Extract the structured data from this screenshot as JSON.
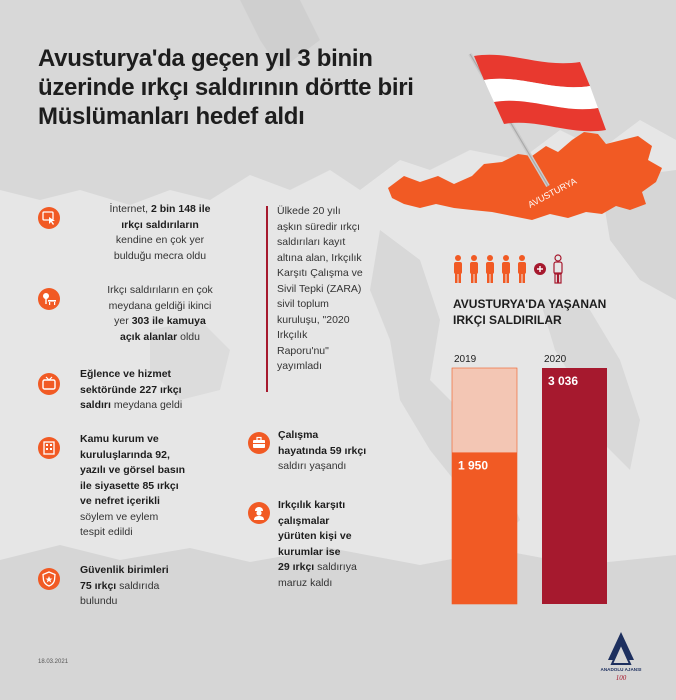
{
  "title": "Avusturya'da geçen yıl 3 binin üzerinde ırkçı saldırının dörtte biri Müslümanları hedef aldı",
  "map_label": "AVUSTURYA",
  "colors": {
    "orange": "#f15a24",
    "dark_red": "#a6192e",
    "light_pink": "#f3c6b4",
    "flag_red": "#e8392f"
  },
  "left_items": [
    {
      "icon": "cursor-click-icon",
      "lines": [
        [
          {
            "t": "İnternet, "
          },
          {
            "t": "2 bin 148 ile",
            "b": true
          }
        ],
        [
          {
            "t": "ırkçı saldırıların",
            "b": true
          }
        ],
        [
          {
            "t": "kendine en çok yer"
          }
        ],
        [
          {
            "t": "bulduğu mecra oldu"
          }
        ]
      ]
    },
    {
      "icon": "park-bench-icon",
      "lines": [
        [
          {
            "t": "Irkçı saldırıların en çok"
          }
        ],
        [
          {
            "t": "meydana geldiği ikinci"
          }
        ],
        [
          {
            "t": "yer "
          },
          {
            "t": "303 ile kamuya",
            "b": true
          }
        ],
        [
          {
            "t": "açık alanlar",
            "b": true
          },
          {
            "t": " oldu"
          }
        ]
      ]
    },
    {
      "icon": "television-icon",
      "lines": [
        [
          {
            "t": "Eğlence ve hizmet",
            "b": true
          }
        ],
        [
          {
            "t": "sektöründe 227 ırkçı",
            "b": true
          }
        ],
        [
          {
            "t": "saldırı",
            "b": true
          },
          {
            "t": " meydana geldi"
          }
        ]
      ]
    },
    {
      "icon": "building-icon",
      "lines": [
        [
          {
            "t": "Kamu kurum ve",
            "b": true
          }
        ],
        [
          {
            "t": "kuruluşlarında 92,",
            "b": true
          }
        ],
        [
          {
            "t": "yazılı ve görsel basın",
            "b": true
          }
        ],
        [
          {
            "t": "ile siyasette 85 ırkçı",
            "b": true
          }
        ],
        [
          {
            "t": "ve nefret içerikli",
            "b": true
          }
        ],
        [
          {
            "t": "söylem ve eylem"
          }
        ],
        [
          {
            "t": "tespit edildi"
          }
        ]
      ]
    },
    {
      "icon": "shield-star-icon",
      "lines": [
        [
          {
            "t": "Güvenlik birimleri",
            "b": true
          }
        ],
        [
          {
            "t": "75 ırkçı",
            "b": true
          },
          {
            "t": " saldırıda"
          }
        ],
        [
          {
            "t": "bulundu"
          }
        ]
      ]
    }
  ],
  "middle_items": [
    {
      "icon": "briefcase-icon",
      "lines": [
        [
          {
            "t": "Çalışma",
            "b": true
          }
        ],
        [
          {
            "t": "hayatında 59 ırkçı",
            "b": true
          }
        ],
        [
          {
            "t": "saldırı yaşandı"
          }
        ]
      ]
    },
    {
      "icon": "worker-icon",
      "lines": [
        [
          {
            "t": "Irkçılık karşıtı",
            "b": true
          }
        ],
        [
          {
            "t": "çalışmalar",
            "b": true
          }
        ],
        [
          {
            "t": "yürüten kişi ve",
            "b": true
          }
        ],
        [
          {
            "t": "kurumlar ise",
            "b": true
          }
        ],
        [
          {
            "t": "29 ırkçı",
            "b": true
          },
          {
            "t": " saldırıya"
          }
        ],
        [
          {
            "t": "maruz kaldı"
          }
        ]
      ]
    }
  ],
  "quote_lines": [
    "Ülkede 20 yılı",
    "aşkın süredir ırkçı",
    "saldırıları kayıt",
    "altına alan, Irkçılık",
    "Karşıtı Çalışma ve",
    "Sivil Tepki (ZARA)",
    "sivil toplum",
    "kuruluşu, \"2020",
    "Irkçılık",
    "Raporu'nu\"",
    "yayımladı"
  ],
  "chart_title_lines": [
    "AVUSTURYA'DA YAŞANAN",
    "IRKÇI SALDIRILAR"
  ],
  "chart_data": {
    "type": "bar",
    "categories": [
      "2019",
      "2020"
    ],
    "values": [
      1950,
      3036
    ],
    "value_labels": [
      "1 950",
      "3 036"
    ],
    "title": "AVUSTURYA'DA YAŞANAN IRKÇI SALDIRILAR",
    "ylim": [
      0,
      3036
    ],
    "colors": [
      "#f15a24",
      "#a6192e"
    ]
  },
  "people_icons": {
    "count": 5,
    "icon": "person-icon",
    "plus_icon": "plus-circle-icon",
    "highlight_icon": "person-outline-icon"
  },
  "date": "18.03.2021",
  "logo": {
    "icon": "anadolu-ajansi-logo-icon",
    "text": "ANADOLU AJANSI"
  }
}
